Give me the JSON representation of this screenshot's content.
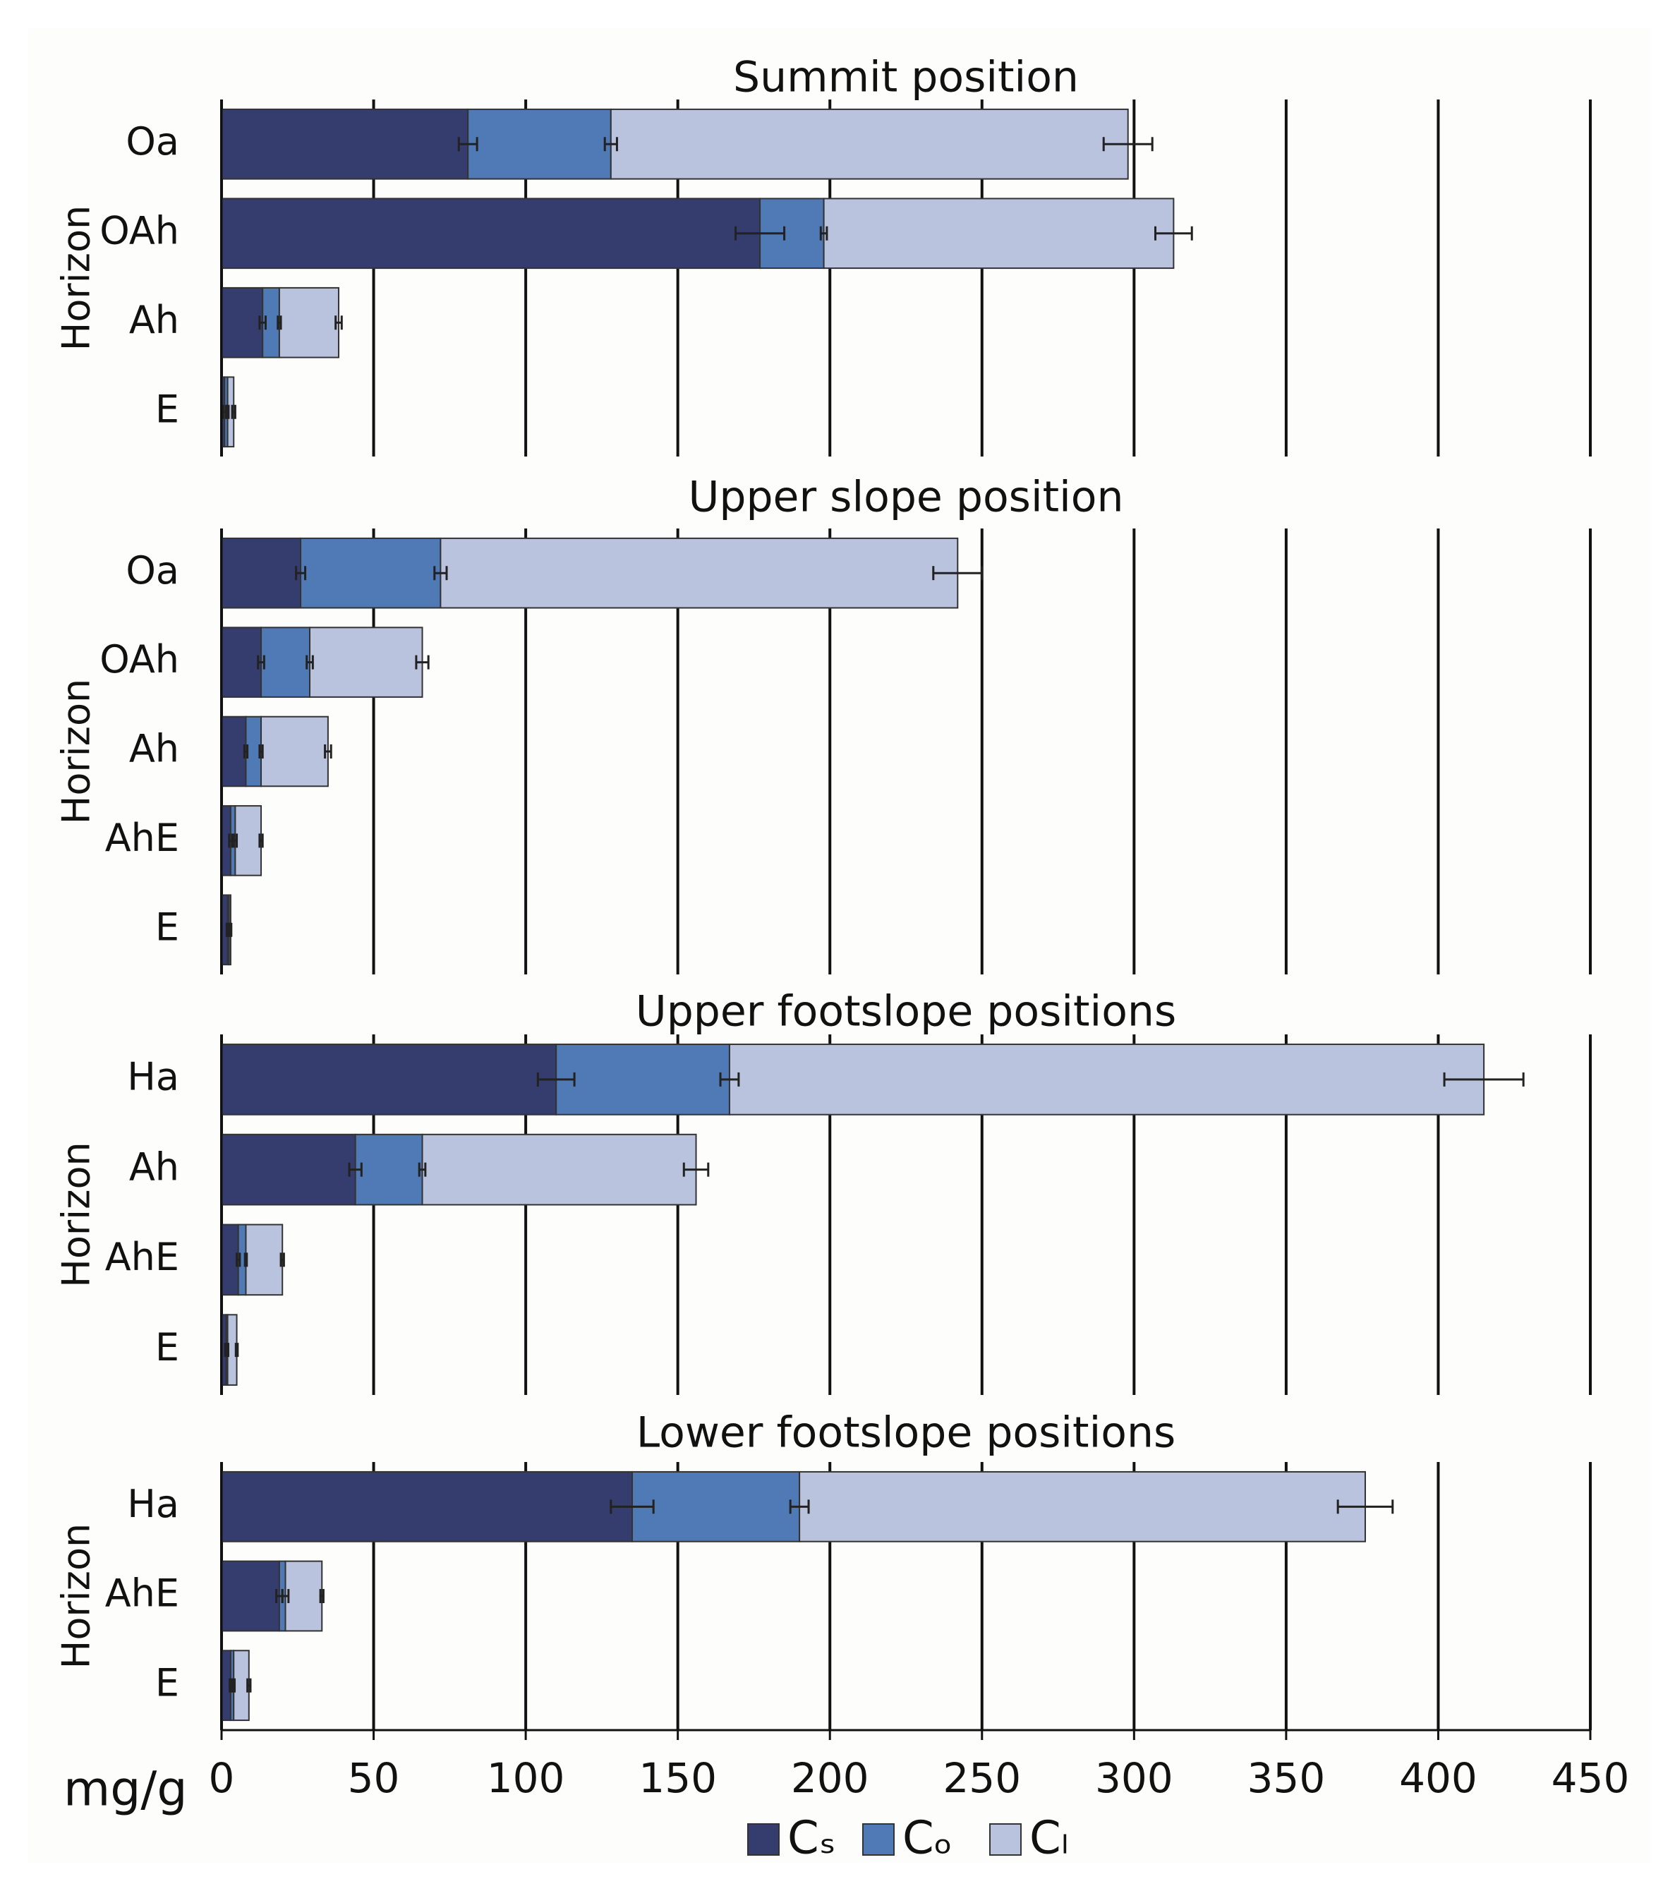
{
  "chart_data": [
    {
      "type": "bar",
      "title": "Summit position",
      "ylabel": "Horizon",
      "categories": [
        "Oa",
        "OAh",
        "Ah",
        "E"
      ],
      "series": [
        {
          "values": [
            81,
            177,
            13.5,
            1
          ],
          "errors": [
            3,
            8,
            1,
            0.5
          ]
        },
        {
          "values": [
            47,
            21,
            5.5,
            1
          ],
          "errors": [
            2,
            1,
            0.5,
            0.3
          ]
        },
        {
          "values": [
            170,
            115,
            19.5,
            2
          ],
          "errors": [
            8,
            6,
            1,
            0.5
          ]
        }
      ],
      "xlim": [
        0,
        450
      ],
      "xticks": [
        0,
        50,
        100,
        150,
        200,
        250,
        300,
        350,
        400,
        450
      ]
    },
    {
      "type": "bar",
      "title": "Upper slope position",
      "ylabel": "Horizon",
      "categories": [
        "Oa",
        "OAh",
        "Ah",
        "AhE",
        "E"
      ],
      "series": [
        {
          "values": [
            26,
            13,
            8,
            3,
            2
          ],
          "errors": [
            1.5,
            1,
            0.5,
            0.5,
            0.3
          ]
        },
        {
          "values": [
            46,
            16,
            5,
            1.5,
            0.5
          ],
          "errors": [
            2,
            1,
            0.5,
            0.5,
            0.2
          ]
        },
        {
          "values": [
            170,
            37,
            22,
            8.5,
            0.5
          ],
          "errors": [
            8,
            2,
            1,
            0.5,
            0.2
          ]
        }
      ],
      "xlim": [
        0,
        450
      ],
      "xticks": [
        0,
        50,
        100,
        150,
        200,
        250,
        300,
        350,
        400,
        450
      ]
    },
    {
      "type": "bar",
      "title": "Upper footslope positions",
      "ylabel": "Horizon",
      "categories": [
        "Ha",
        "Ah",
        "AhE",
        "E"
      ],
      "series": [
        {
          "values": [
            110,
            44,
            5.5,
            1.5
          ],
          "errors": [
            6,
            2,
            0.5,
            0.3
          ]
        },
        {
          "values": [
            57,
            22,
            2.5,
            0.5
          ],
          "errors": [
            3,
            1,
            0.3,
            0.2
          ]
        },
        {
          "values": [
            248,
            90,
            12,
            3
          ],
          "errors": [
            13,
            4,
            0.5,
            0.3
          ]
        }
      ],
      "xlim": [
        0,
        450
      ],
      "xticks": [
        0,
        50,
        100,
        150,
        200,
        250,
        300,
        350,
        400,
        450
      ]
    },
    {
      "type": "bar",
      "title": "Lower footslope positions",
      "ylabel": "Horizon",
      "xlabel": "mg/g",
      "categories": [
        "Ha",
        "AhE",
        "E"
      ],
      "series": [
        {
          "values": [
            135,
            19,
            3
          ],
          "errors": [
            7,
            1,
            0.3
          ]
        },
        {
          "values": [
            55,
            2,
            1
          ],
          "errors": [
            3,
            1,
            0.3
          ]
        },
        {
          "values": [
            186,
            12,
            5
          ],
          "errors": [
            9,
            0.5,
            0.5
          ]
        }
      ],
      "xlim": [
        0,
        450
      ],
      "xticks": [
        0,
        50,
        100,
        150,
        200,
        250,
        300,
        350,
        400,
        450
      ],
      "xtick_labels": true
    }
  ],
  "legend": {
    "series": [
      {
        "name": "Cₛ",
        "color": "#353c6e"
      },
      {
        "name": "Cₒ",
        "color": "#4f7ab5"
      },
      {
        "name": "Cₗ",
        "color": "#bac3de"
      }
    ]
  }
}
